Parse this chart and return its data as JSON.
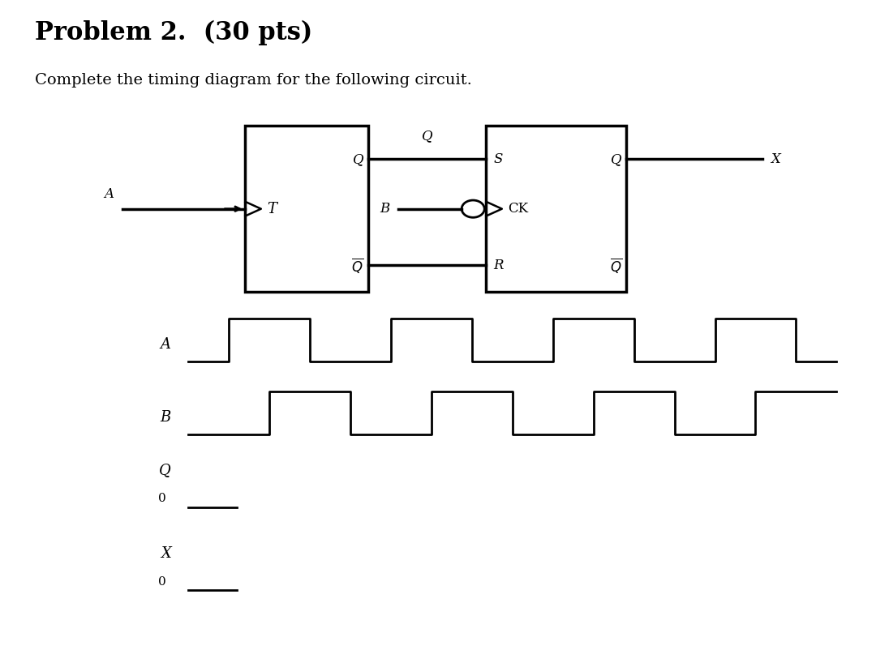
{
  "title": "Problem 2.  (30 pts)",
  "subtitle": "Complete the timing diagram for the following circuit.",
  "bg_color": "#ffffff",
  "text_color": "#000000",
  "timing": {
    "signal_A": {
      "label": "A",
      "x_points": [
        0,
        1,
        1,
        3,
        3,
        5,
        5,
        7,
        7,
        9,
        9,
        11,
        11,
        13,
        13,
        15,
        15,
        16
      ],
      "y_points": [
        0,
        0,
        1,
        1,
        0,
        0,
        1,
        1,
        0,
        0,
        1,
        1,
        0,
        0,
        1,
        1,
        0,
        0
      ]
    },
    "signal_B": {
      "label": "B",
      "x_points": [
        0,
        2,
        2,
        4,
        4,
        6,
        6,
        8,
        8,
        10,
        10,
        12,
        12,
        14,
        14,
        16
      ],
      "y_points": [
        0,
        0,
        1,
        1,
        0,
        0,
        1,
        1,
        0,
        0,
        1,
        1,
        0,
        0,
        1,
        1
      ]
    }
  }
}
